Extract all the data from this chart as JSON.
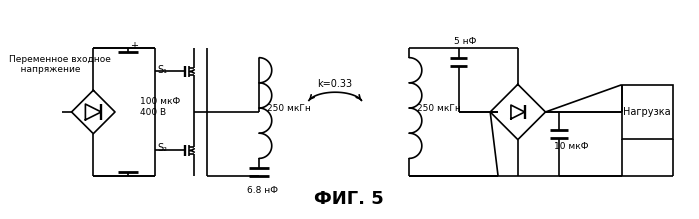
{
  "title": "ФИГ. 5",
  "title_fontsize": 13,
  "fig_width": 6.99,
  "fig_height": 2.19,
  "dpi": 100,
  "background_color": "#ffffff",
  "line_color": "#000000",
  "lw": 1.2,
  "label_ac": "Переменное входное\n    напряжение",
  "label_cap1": "100 мкФ\n400 В",
  "label_s1": "S₁",
  "label_s2": "S₂",
  "label_ind1": "250 мкГн",
  "label_cap2": "6.8 нФ",
  "label_k": "k=0.33",
  "label_cap3": "5 нФ",
  "label_ind2": "250 мкГн",
  "label_cap4": "10 мкФ",
  "label_load": "Нагрузка"
}
